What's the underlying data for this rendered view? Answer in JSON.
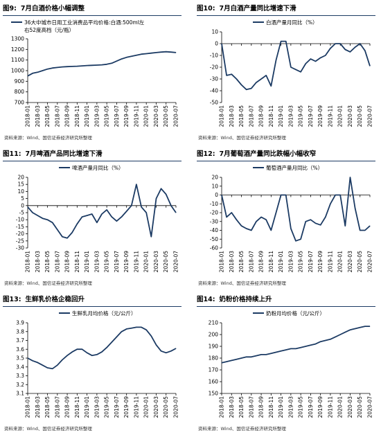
{
  "source_text": "资料来源：Wind、国信证券经济研究所整理",
  "colors": {
    "series": "#1b3a63",
    "title_rule": "#1b3a63"
  },
  "x_dates": [
    "2018-01",
    "2018-03",
    "2018-05",
    "2018-07",
    "2018-09",
    "2018-11",
    "2019-01",
    "2019-03",
    "2019-05",
    "2019-07",
    "2019-09",
    "2019-11",
    "2020-01",
    "2020-03",
    "2020-05",
    "2020-07"
  ],
  "chart_data": [
    {
      "type": "line",
      "fig_label": "图9:",
      "title": "7月白酒价格小幅调整",
      "legend": [
        "36大中城市日用工业消费品平均价格:白酒:500ml左",
        "右52度高档（元/瓶）"
      ],
      "legend_position": "top",
      "ylim": [
        700,
        1300
      ],
      "yticks": [
        700,
        800,
        900,
        1000,
        1100,
        1200,
        1300
      ],
      "x": [
        "2018-01",
        "2018-02",
        "2018-03",
        "2018-04",
        "2018-05",
        "2018-06",
        "2018-07",
        "2018-08",
        "2018-09",
        "2018-10",
        "2018-11",
        "2018-12",
        "2019-01",
        "2019-02",
        "2019-03",
        "2019-04",
        "2019-05",
        "2019-06",
        "2019-07",
        "2019-08",
        "2019-09",
        "2019-10",
        "2019-11",
        "2019-12",
        "2020-01",
        "2020-02",
        "2020-03",
        "2020-04",
        "2020-05",
        "2020-06",
        "2020-07"
      ],
      "values": [
        950,
        975,
        985,
        1000,
        1015,
        1025,
        1030,
        1035,
        1038,
        1040,
        1042,
        1045,
        1048,
        1050,
        1052,
        1055,
        1060,
        1070,
        1090,
        1110,
        1125,
        1135,
        1145,
        1155,
        1160,
        1165,
        1170,
        1175,
        1178,
        1175,
        1170
      ]
    },
    {
      "type": "line",
      "fig_label": "图10:",
      "title": "7月白酒产量同比增速下滑",
      "legend": [
        "白酒产量月同比（%）"
      ],
      "legend_position": "top",
      "ylim": [
        -50,
        10
      ],
      "yticks": [
        10,
        0,
        -10,
        -20,
        -30,
        -40,
        -50
      ],
      "x": [
        "2018-01",
        "2018-02",
        "2018-03",
        "2018-04",
        "2018-05",
        "2018-06",
        "2018-07",
        "2018-08",
        "2018-09",
        "2018-10",
        "2018-11",
        "2018-12",
        "2019-01",
        "2019-02",
        "2019-03",
        "2019-04",
        "2019-05",
        "2019-06",
        "2019-07",
        "2019-08",
        "2019-09",
        "2019-10",
        "2019-11",
        "2019-12",
        "2020-01",
        "2020-02",
        "2020-03",
        "2020-04",
        "2020-05",
        "2020-06",
        "2020-07"
      ],
      "values": [
        0,
        -27,
        -26,
        -30,
        -35,
        -39,
        -38,
        -33,
        -30,
        -27,
        -36,
        -14,
        2,
        2,
        -20,
        -22,
        -24,
        -17,
        -13,
        -15,
        -12,
        -10,
        -4,
        0,
        0,
        -5,
        -7,
        -3,
        0,
        -6,
        -19
      ]
    },
    {
      "type": "line",
      "fig_label": "图11:",
      "title": "7月啤酒产品同比增速下滑",
      "legend": [
        "啤酒产量月同比（%）"
      ],
      "legend_position": "top",
      "ylim": [
        -30,
        20
      ],
      "yticks": [
        20,
        15,
        10,
        5,
        0,
        -5,
        -10,
        -15,
        -20,
        -25,
        -30
      ],
      "x": [
        "2018-01",
        "2018-02",
        "2018-03",
        "2018-04",
        "2018-05",
        "2018-06",
        "2018-07",
        "2018-08",
        "2018-09",
        "2018-10",
        "2018-11",
        "2018-12",
        "2019-01",
        "2019-02",
        "2019-03",
        "2019-04",
        "2019-05",
        "2019-06",
        "2019-07",
        "2019-08",
        "2019-09",
        "2019-10",
        "2019-11",
        "2019-12",
        "2020-01",
        "2020-02",
        "2020-03",
        "2020-04",
        "2020-05",
        "2020-06",
        "2020-07"
      ],
      "values": [
        -1,
        -5,
        -7,
        -9,
        -10,
        -12,
        -17,
        -22,
        -23,
        -19,
        -13,
        -8,
        -7,
        -6,
        -12,
        -6,
        -3,
        -8,
        -11,
        -8,
        -4,
        0,
        15,
        -1,
        -5,
        -22,
        5,
        12,
        8,
        0,
        -5
      ]
    },
    {
      "type": "line",
      "fig_label": "图12:",
      "title": "7月葡萄酒产量同比跌幅小幅收窄",
      "legend": [
        "葡萄酒产量月同比（%）"
      ],
      "legend_position": "top",
      "ylim": [
        -60,
        20
      ],
      "yticks": [
        20,
        10,
        0,
        -10,
        -20,
        -30,
        -40,
        -50,
        -60
      ],
      "x": [
        "2018-01",
        "2018-02",
        "2018-03",
        "2018-04",
        "2018-05",
        "2018-06",
        "2018-07",
        "2018-08",
        "2018-09",
        "2018-10",
        "2018-11",
        "2018-12",
        "2019-01",
        "2019-02",
        "2019-03",
        "2019-04",
        "2019-05",
        "2019-06",
        "2019-07",
        "2019-08",
        "2019-09",
        "2019-10",
        "2019-11",
        "2019-12",
        "2020-01",
        "2020-02",
        "2020-03",
        "2020-04",
        "2020-05",
        "2020-06",
        "2020-07"
      ],
      "values": [
        0,
        -25,
        -20,
        -28,
        -35,
        -38,
        -40,
        -30,
        -25,
        -28,
        -40,
        -20,
        0,
        0,
        -38,
        -52,
        -50,
        -30,
        -28,
        -32,
        -34,
        -25,
        -10,
        0,
        0,
        -35,
        20,
        -15,
        -40,
        -40,
        -35
      ]
    },
    {
      "type": "line",
      "fig_label": "图13:",
      "title": "生鲜乳价格企稳回升",
      "legend": [
        "生鲜乳月均价格（元/公斤）"
      ],
      "legend_position": "top",
      "ylim": [
        3.1,
        3.9
      ],
      "yticks": [
        3.9,
        3.8,
        3.7,
        3.6,
        3.5,
        3.4,
        3.3,
        3.2,
        3.1
      ],
      "x": [
        "2018-01",
        "2018-02",
        "2018-03",
        "2018-04",
        "2018-05",
        "2018-06",
        "2018-07",
        "2018-08",
        "2018-09",
        "2018-10",
        "2018-11",
        "2018-12",
        "2019-01",
        "2019-02",
        "2019-03",
        "2019-04",
        "2019-05",
        "2019-06",
        "2019-07",
        "2019-08",
        "2019-09",
        "2019-10",
        "2019-11",
        "2019-12",
        "2020-01",
        "2020-02",
        "2020-03",
        "2020-04",
        "2020-05",
        "2020-06",
        "2020-07"
      ],
      "values": [
        3.5,
        3.47,
        3.45,
        3.42,
        3.39,
        3.38,
        3.42,
        3.48,
        3.53,
        3.57,
        3.6,
        3.6,
        3.56,
        3.53,
        3.54,
        3.57,
        3.62,
        3.68,
        3.74,
        3.8,
        3.83,
        3.84,
        3.85,
        3.85,
        3.82,
        3.75,
        3.65,
        3.58,
        3.56,
        3.58,
        3.61
      ]
    },
    {
      "type": "line",
      "fig_label": "图14:",
      "title": "奶粉价格持续上升",
      "legend": [
        "奶粉月均价格（元/公斤）"
      ],
      "legend_position": "top",
      "ylim": [
        150,
        210
      ],
      "yticks": [
        210,
        200,
        190,
        180,
        170,
        160,
        150
      ],
      "x": [
        "2018-01",
        "2018-02",
        "2018-03",
        "2018-04",
        "2018-05",
        "2018-06",
        "2018-07",
        "2018-08",
        "2018-09",
        "2018-10",
        "2018-11",
        "2018-12",
        "2019-01",
        "2019-02",
        "2019-03",
        "2019-04",
        "2019-05",
        "2019-06",
        "2019-07",
        "2019-08",
        "2019-09",
        "2019-10",
        "2019-11",
        "2019-12",
        "2020-01",
        "2020-02",
        "2020-03",
        "2020-04",
        "2020-05",
        "2020-06",
        "2020-07"
      ],
      "values": [
        176,
        177,
        178,
        179,
        180,
        181,
        181,
        182,
        183,
        183,
        184,
        185,
        186,
        187,
        188,
        188,
        189,
        190,
        191,
        192,
        194,
        195,
        196,
        198,
        200,
        202,
        204,
        205,
        206,
        207,
        207
      ]
    }
  ]
}
